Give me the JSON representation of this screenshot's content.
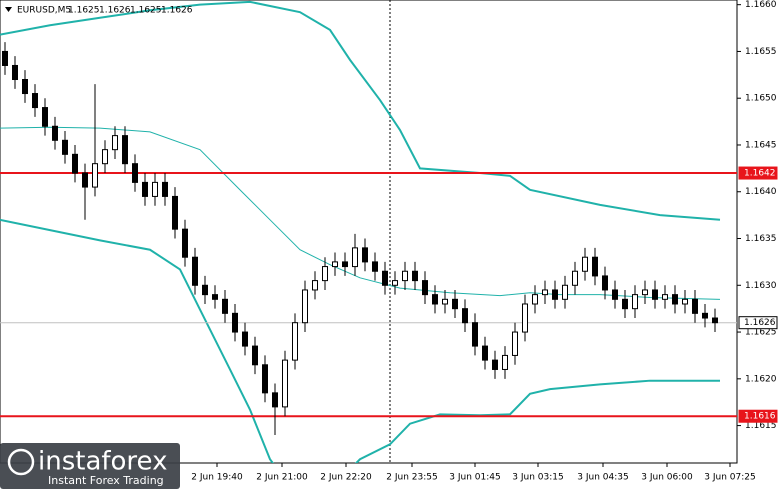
{
  "chart_data": {
    "type": "candlestick",
    "title": "EURUSD,M5",
    "header_ohlc": [
      1.1625,
      1.1626,
      1.1625,
      1.1626
    ],
    "ylim": [
      1.1611,
      1.16605
    ],
    "yticks": [
      {
        "value": 1.166,
        "label": "1.1660"
      },
      1.1655,
      {
        "value": 1.165,
        "label": "1.1650"
      },
      1.1645,
      {
        "value": 1.164,
        "label": "1.1640"
      },
      1.1635,
      {
        "value": 1.163,
        "label": "1.1630"
      },
      1.1625,
      {
        "value": 1.162,
        "label": "1.1620"
      },
      1.1615
    ],
    "xticks": [
      {
        "value": 21.2,
        "label": "2 Jun 19:40"
      },
      {
        "value": 27.7,
        "label": "2 Jun 21:00"
      },
      {
        "value": 34.1,
        "label": "2 Jun 22:20"
      },
      {
        "value": 40.7,
        "label": "2 Jun 23:55"
      },
      {
        "value": 47,
        "label": "3 Jun 01:45"
      },
      {
        "value": 53.3,
        "label": "3 Jun 03:15"
      },
      {
        "value": 59.8,
        "label": "3 Jun 04:35"
      },
      {
        "value": 66.2,
        "label": "3 Jun 06:00"
      },
      {
        "value": 72.5,
        "label": "3 Jun 07:25"
      }
    ],
    "ohlc": {
      "open": [
        1.1655,
        1.16535,
        1.1652,
        1.16505,
        1.1649,
        1.1647,
        1.16455,
        1.1644,
        1.1642,
        1.16405,
        1.1643,
        1.16445,
        1.1646,
        1.1643,
        1.1641,
        1.16395,
        1.1641,
        1.16395,
        1.1636,
        1.1633,
        1.163,
        1.1629,
        1.16285,
        1.1627,
        1.1625,
        1.16235,
        1.16215,
        1.16185,
        1.1617,
        1.1622,
        1.1626,
        1.16295,
        1.16305,
        1.1632,
        1.16325,
        1.1632,
        1.1634,
        1.16325,
        1.16315,
        1.163,
        1.16305,
        1.16315,
        1.16305,
        1.1629,
        1.1628,
        1.16285,
        1.16275,
        1.1626,
        1.16235,
        1.1622,
        1.1621,
        1.16225,
        1.1625,
        1.1628,
        1.1629,
        1.16295,
        1.16285,
        1.163,
        1.16315,
        1.1633,
        1.1631,
        1.16295,
        1.16285,
        1.16275,
        1.1629,
        1.16295,
        1.16285,
        1.1629,
        1.1628,
        1.16285,
        1.1627,
        1.16265
      ],
      "high": [
        1.1656,
        1.16545,
        1.1653,
        1.16515,
        1.165,
        1.1648,
        1.16465,
        1.1645,
        1.1643,
        1.16515,
        1.16455,
        1.1647,
        1.1647,
        1.1644,
        1.1642,
        1.1642,
        1.1642,
        1.16405,
        1.1637,
        1.1634,
        1.1631,
        1.163,
        1.16295,
        1.1628,
        1.1626,
        1.16245,
        1.16225,
        1.16195,
        1.1623,
        1.1627,
        1.16305,
        1.16315,
        1.1633,
        1.16335,
        1.16335,
        1.16355,
        1.1635,
        1.16335,
        1.16325,
        1.16315,
        1.16325,
        1.16325,
        1.16315,
        1.163,
        1.16295,
        1.16295,
        1.16285,
        1.1627,
        1.16245,
        1.1623,
        1.16235,
        1.1626,
        1.1629,
        1.163,
        1.16305,
        1.16305,
        1.1631,
        1.16325,
        1.1634,
        1.1634,
        1.1632,
        1.16305,
        1.16295,
        1.163,
        1.16305,
        1.16305,
        1.163,
        1.163,
        1.16295,
        1.16295,
        1.1628,
        1.16275
      ],
      "low": [
        1.16525,
        1.1651,
        1.16495,
        1.1648,
        1.1646,
        1.16445,
        1.1643,
        1.1641,
        1.1637,
        1.16395,
        1.1642,
        1.16435,
        1.1642,
        1.164,
        1.16385,
        1.16385,
        1.16385,
        1.1635,
        1.1632,
        1.1629,
        1.1628,
        1.16275,
        1.1626,
        1.1624,
        1.16225,
        1.16205,
        1.16175,
        1.1614,
        1.1616,
        1.1621,
        1.1625,
        1.16285,
        1.16295,
        1.1631,
        1.1631,
        1.1631,
        1.16315,
        1.16305,
        1.1629,
        1.1629,
        1.16295,
        1.16295,
        1.1628,
        1.1627,
        1.1627,
        1.16265,
        1.1625,
        1.16225,
        1.1621,
        1.162,
        1.162,
        1.16215,
        1.1624,
        1.1627,
        1.1628,
        1.16275,
        1.16275,
        1.1629,
        1.16305,
        1.163,
        1.16285,
        1.16275,
        1.16265,
        1.16265,
        1.1628,
        1.16275,
        1.16275,
        1.1627,
        1.1627,
        1.1626,
        1.16255,
        1.1625
      ],
      "close": [
        1.16535,
        1.1652,
        1.16505,
        1.1649,
        1.1647,
        1.16455,
        1.1644,
        1.1642,
        1.16405,
        1.1643,
        1.16445,
        1.1646,
        1.1643,
        1.1641,
        1.16395,
        1.1641,
        1.16395,
        1.1636,
        1.1633,
        1.163,
        1.1629,
        1.16285,
        1.1627,
        1.1625,
        1.16235,
        1.16215,
        1.16185,
        1.1617,
        1.1622,
        1.1626,
        1.16295,
        1.16305,
        1.1632,
        1.16325,
        1.1632,
        1.1634,
        1.16325,
        1.16315,
        1.163,
        1.16305,
        1.16315,
        1.16305,
        1.1629,
        1.1628,
        1.16285,
        1.16275,
        1.1626,
        1.16235,
        1.1622,
        1.1621,
        1.16225,
        1.1625,
        1.1628,
        1.1629,
        1.16295,
        1.16285,
        1.163,
        1.16315,
        1.1633,
        1.1631,
        1.16295,
        1.16285,
        1.16275,
        1.1629,
        1.16295,
        1.16285,
        1.1629,
        1.1628,
        1.16285,
        1.1627,
        1.16265,
        1.1626
      ]
    },
    "bands": [
      {
        "color": "#20b2aa",
        "width": 2,
        "x": [
          -0.5,
          4.5,
          9.5,
          14.5,
          19.5,
          24.5,
          29.5,
          32.5,
          34.5,
          37.5,
          39.5,
          41.5,
          47.5,
          50.5,
          52.5,
          59.5,
          65.5,
          71.5
        ],
        "values": [
          1.16568,
          1.16578,
          1.16586,
          1.16594,
          1.166,
          1.16603,
          1.16592,
          1.16573,
          1.16541,
          1.16498,
          1.16466,
          1.16425,
          1.1642,
          1.16417,
          1.16402,
          1.16386,
          1.16375,
          1.1637
        ]
      },
      {
        "color": "#20b2aa",
        "width": 1,
        "x": [
          -0.5,
          4.5,
          9.5,
          14.5,
          19.5,
          23.5,
          26.5,
          29.5,
          32.5,
          35.5,
          39.5,
          44.5,
          49.5,
          52.5,
          55.5,
          59.5,
          64.5,
          71.5
        ],
        "values": [
          1.16468,
          1.16469,
          1.16468,
          1.16464,
          1.16445,
          1.16402,
          1.1637,
          1.16338,
          1.16322,
          1.16308,
          1.16297,
          1.16292,
          1.16289,
          1.16292,
          1.1629,
          1.1629,
          1.16287,
          1.16285
        ]
      },
      {
        "color": "#20b2aa",
        "width": 2,
        "x": [
          -0.5,
          4.5,
          9.5,
          14.5,
          17.5,
          19.5,
          22.5,
          24.5,
          26.5,
          29.5,
          32.5,
          35.5,
          38.5,
          40.5,
          43.5,
          47.5,
          50.5,
          52.5,
          54.5,
          59.5,
          64.5,
          71.5
        ],
        "values": [
          1.1637,
          1.16359,
          1.16348,
          1.16338,
          1.16317,
          1.16274,
          1.1621,
          1.16167,
          1.16114,
          1.16071,
          1.16082,
          1.16114,
          1.1613,
          1.16152,
          1.16162,
          1.16161,
          1.16162,
          1.16184,
          1.16189,
          1.16194,
          1.16198,
          1.16198
        ]
      }
    ],
    "levels": [
      {
        "value": 1.1642,
        "color": "#e8141b",
        "label_bg": "#e8141b",
        "label_fg": "#ffffff"
      },
      {
        "value": 1.1616,
        "color": "#e8141b",
        "label_bg": "#e8141b",
        "label_fg": "#ffffff"
      },
      {
        "value": 1.1626,
        "color": "#c0c0c0",
        "label_bg": "#ffffff",
        "label_fg": "#000000"
      }
    ]
  },
  "logo": {
    "name": "instaforex",
    "tagline": "Instant Forex Trading"
  }
}
